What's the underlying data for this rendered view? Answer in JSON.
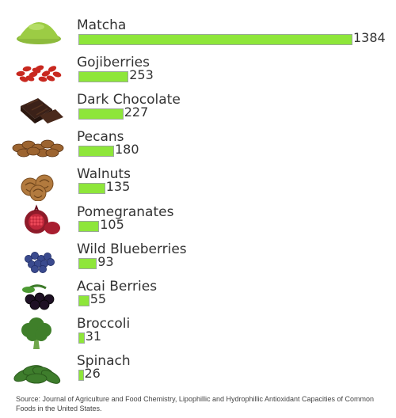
{
  "chart_data": {
    "type": "bar",
    "orientation": "horizontal",
    "categories": [
      "Matcha",
      "Gojiberries",
      "Dark Chocolate",
      "Pecans",
      "Walnuts",
      "Pomegranates",
      "Wild Blueberries",
      "Acai Berries",
      "Broccoli",
      "Spinach"
    ],
    "values": [
      1384,
      253,
      227,
      180,
      135,
      105,
      93,
      55,
      31,
      26
    ],
    "icons": [
      "matcha-powder-icon",
      "gojiberries-icon",
      "dark-chocolate-icon",
      "pecans-icon",
      "walnuts-icon",
      "pomegranate-icon",
      "blueberries-icon",
      "acai-berries-icon",
      "broccoli-icon",
      "spinach-icon"
    ],
    "bar_color": "#8ee63a",
    "xlim": [
      0,
      1384
    ],
    "grid": false,
    "legend": "none"
  },
  "source": "Source: Journal of Agriculture and Food Chemistry, Lipophillic and Hydrophillic Antioxidant Capacities of Common Foods in the United States."
}
